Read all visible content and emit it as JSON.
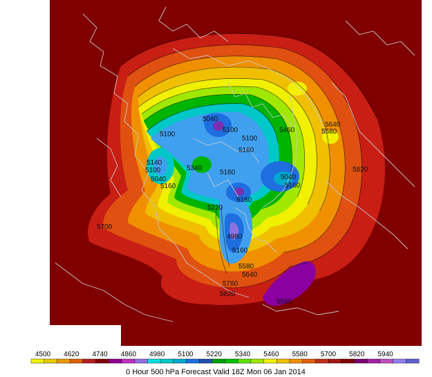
{
  "caption": "0 Hour 500 hPa Forecast Valid 18Z Mon 06 Jan 2014",
  "legend": {
    "labels": [
      "4500",
      "4620",
      "4740",
      "4860",
      "4980",
      "5100",
      "5220",
      "5340",
      "5460",
      "5580",
      "5700",
      "5820",
      "5940"
    ],
    "colors": [
      "#f2f200",
      "#e8c800",
      "#e89a00",
      "#e06000",
      "#b52020",
      "#800000",
      "#90008f",
      "#c030c0",
      "#9070e0",
      "#00e0e0",
      "#00c8c8",
      "#00a8d0",
      "#1e6ee0",
      "#2050b0",
      "#00a000",
      "#00c000",
      "#60e000",
      "#a0e800",
      "#f0f000",
      "#f0c000",
      "#f09000",
      "#e06010",
      "#c03018",
      "#a01818",
      "#800000",
      "#7a0070",
      "#a020a0",
      "#c050c0",
      "#9080f0",
      "#6060d0"
    ]
  },
  "contour_labels": [
    {
      "text": "5040"
    },
    {
      "text": "5100"
    },
    {
      "text": "5100"
    },
    {
      "text": "5160"
    },
    {
      "text": "5460"
    },
    {
      "text": "5640"
    },
    {
      "text": "5580"
    },
    {
      "text": "5100"
    },
    {
      "text": "5140"
    },
    {
      "text": "5100"
    },
    {
      "text": "5040"
    },
    {
      "text": "5160"
    },
    {
      "text": "5340"
    },
    {
      "text": "5160"
    },
    {
      "text": "5040"
    },
    {
      "text": "5160"
    },
    {
      "text": "5220"
    },
    {
      "text": "5160"
    },
    {
      "text": "5820"
    },
    {
      "text": "5700"
    },
    {
      "text": "4980"
    },
    {
      "text": "5160"
    },
    {
      "text": "5580"
    },
    {
      "text": "5760"
    },
    {
      "text": "5820"
    },
    {
      "text": "5580"
    },
    {
      "text": "5640"
    }
  ]
}
